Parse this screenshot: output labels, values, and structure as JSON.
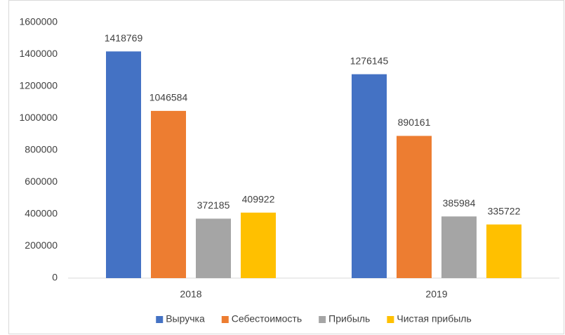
{
  "chart_data": {
    "type": "bar",
    "categories": [
      "2018",
      "2019"
    ],
    "series": [
      {
        "name": "Выручка",
        "color": "#4472c4",
        "values": [
          1418769,
          1276145
        ]
      },
      {
        "name": "Себестоимость",
        "color": "#ed7d31",
        "values": [
          1046584,
          890161
        ]
      },
      {
        "name": "Прибыль",
        "color": "#a5a5a5",
        "values": [
          372185,
          385984
        ]
      },
      {
        "name": "Чистая прибыль",
        "color": "#ffc000",
        "values": [
          409922,
          335722
        ]
      }
    ],
    "ylim": [
      0,
      1600000
    ],
    "yticks": [
      0,
      200000,
      400000,
      600000,
      800000,
      1000000,
      1200000,
      1400000,
      1600000
    ],
    "grid": false,
    "legend": "bottom"
  }
}
